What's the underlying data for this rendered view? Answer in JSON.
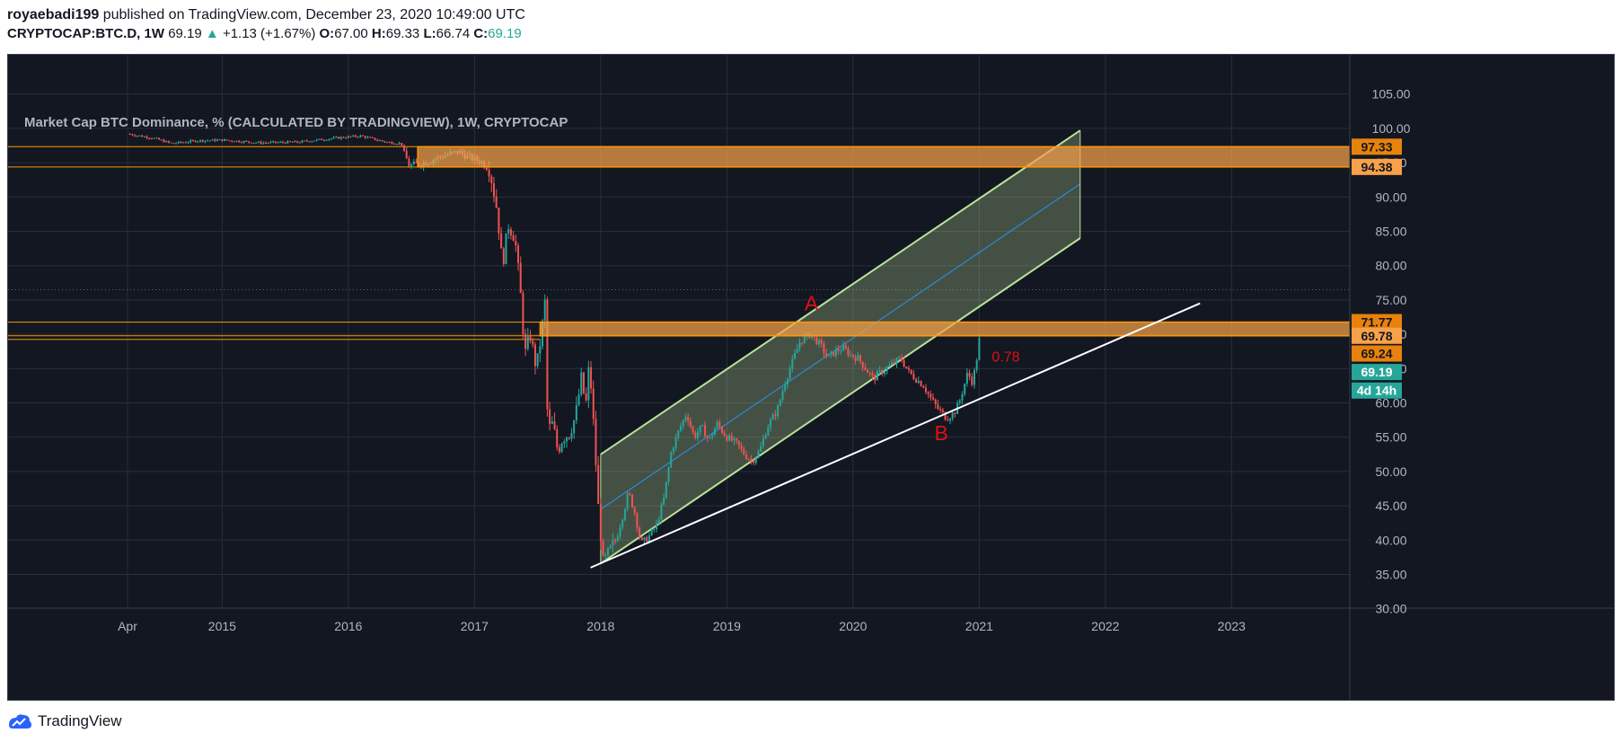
{
  "header": {
    "author": "royaebadi199",
    "published_text": " published on TradingView.com, December 23, 2020 10:49:00 UTC",
    "symbol": "CRYPTOCAP:BTC.D, 1W",
    "last": "69.19",
    "up_arrow": "▲",
    "change": "+1.13 (+1.67%)",
    "o_label": "O:",
    "o_value": "67.00",
    "h_label": "H:",
    "h_value": "69.33",
    "l_label": "L:",
    "l_value": "66.74",
    "c_label": "C:",
    "c_value": "69.19"
  },
  "footer": {
    "brand": "TradingView",
    "logo_icon": "tradingview-logo-icon"
  },
  "colors": {
    "background": "#131722",
    "grid": "#2a2e39",
    "up": "#26a69a",
    "down": "#ef5350",
    "zone_fill": "#f7a14a",
    "zone_border": "#ff9800",
    "channel_fill": "#c8e6a0",
    "channel_border": "#b9e39a",
    "midline": "#2196f3",
    "trendline": "#ffffff",
    "annotation": "#e01010",
    "axis_text": "#b2b5be"
  },
  "chart_data": {
    "type": "candlestick",
    "title": "Market Cap BTC Dominance, % (CALCULATED BY TRADINGVIEW), 1W, CRYPTOCAP",
    "ylim": [
      28,
      107.5
    ],
    "xlim": [
      2014.0,
      2024.1
    ],
    "y_ticks": [
      "30.00",
      "35.00",
      "40.00",
      "45.00",
      "50.00",
      "55.00",
      "60.00",
      "65.00",
      "70.00",
      "75.00",
      "80.00",
      "85.00",
      "90.00",
      "95.00",
      "100.00",
      "105.00"
    ],
    "x_ticks": [
      {
        "t": 2014.25,
        "label": "Apr"
      },
      {
        "t": 2015.0,
        "label": "2015"
      },
      {
        "t": 2016.0,
        "label": "2016"
      },
      {
        "t": 2017.0,
        "label": "2017"
      },
      {
        "t": 2018.0,
        "label": "2018"
      },
      {
        "t": 2019.0,
        "label": "2019"
      },
      {
        "t": 2020.0,
        "label": "2020"
      },
      {
        "t": 2021.0,
        "label": "2021"
      },
      {
        "t": 2022.0,
        "label": "2022"
      },
      {
        "t": 2023.0,
        "label": "2023"
      }
    ],
    "price_path": [
      [
        2014.25,
        99.2
      ],
      [
        2014.45,
        98.6
      ],
      [
        2014.6,
        97.8
      ],
      [
        2014.8,
        98.2
      ],
      [
        2015.0,
        98.3
      ],
      [
        2015.3,
        97.9
      ],
      [
        2015.6,
        98.0
      ],
      [
        2015.9,
        98.6
      ],
      [
        2016.1,
        98.9
      ],
      [
        2016.3,
        98.0
      ],
      [
        2016.42,
        97.8
      ],
      [
        2016.48,
        94.5
      ],
      [
        2016.6,
        95.0
      ],
      [
        2016.75,
        96.0
      ],
      [
        2016.88,
        96.6
      ],
      [
        2016.95,
        95.8
      ],
      [
        2017.05,
        95.2
      ],
      [
        2017.12,
        94.0
      ],
      [
        2017.18,
        88.0
      ],
      [
        2017.22,
        80.0
      ],
      [
        2017.27,
        86.0
      ],
      [
        2017.32,
        84.0
      ],
      [
        2017.36,
        77.0
      ],
      [
        2017.4,
        67.0
      ],
      [
        2017.44,
        70.0
      ],
      [
        2017.49,
        65.0
      ],
      [
        2017.53,
        70.0
      ],
      [
        2017.56,
        75.0
      ],
      [
        2017.58,
        56.0
      ],
      [
        2017.62,
        57.0
      ],
      [
        2017.66,
        53.0
      ],
      [
        2017.7,
        55.0
      ],
      [
        2017.75,
        55.5
      ],
      [
        2017.8,
        58.0
      ],
      [
        2017.85,
        64.0
      ],
      [
        2017.88,
        59.0
      ],
      [
        2017.91,
        66.0
      ],
      [
        2017.95,
        55.0
      ],
      [
        2017.98,
        45.0
      ],
      [
        2018.02,
        36.5
      ],
      [
        2018.06,
        38.0
      ],
      [
        2018.12,
        40.0
      ],
      [
        2018.18,
        44.0
      ],
      [
        2018.22,
        47.0
      ],
      [
        2018.27,
        44.0
      ],
      [
        2018.32,
        39.5
      ],
      [
        2018.38,
        40.5
      ],
      [
        2018.44,
        42.0
      ],
      [
        2018.5,
        46.0
      ],
      [
        2018.56,
        53.0
      ],
      [
        2018.62,
        56.0
      ],
      [
        2018.68,
        58.5
      ],
      [
        2018.74,
        55.0
      ],
      [
        2018.8,
        56.5
      ],
      [
        2018.86,
        54.5
      ],
      [
        2018.92,
        57.0
      ],
      [
        2019.0,
        55.0
      ],
      [
        2019.08,
        54.0
      ],
      [
        2019.14,
        52.5
      ],
      [
        2019.2,
        51.5
      ],
      [
        2019.26,
        53.0
      ],
      [
        2019.32,
        56.5
      ],
      [
        2019.4,
        59.0
      ],
      [
        2019.46,
        63.0
      ],
      [
        2019.52,
        66.0
      ],
      [
        2019.58,
        69.0
      ],
      [
        2019.66,
        70.0
      ],
      [
        2019.74,
        68.5
      ],
      [
        2019.8,
        66.5
      ],
      [
        2019.86,
        67.5
      ],
      [
        2019.92,
        68.0
      ],
      [
        2019.98,
        67.0
      ],
      [
        2020.04,
        66.5
      ],
      [
        2020.1,
        65.0
      ],
      [
        2020.16,
        63.5
      ],
      [
        2020.22,
        64.5
      ],
      [
        2020.3,
        65.5
      ],
      [
        2020.38,
        66.5
      ],
      [
        2020.44,
        64.5
      ],
      [
        2020.5,
        63.5
      ],
      [
        2020.56,
        62.5
      ],
      [
        2020.62,
        60.5
      ],
      [
        2020.68,
        59.0
      ],
      [
        2020.74,
        57.8
      ],
      [
        2020.8,
        58.5
      ],
      [
        2020.84,
        60.0
      ],
      [
        2020.88,
        62.5
      ],
      [
        2020.91,
        64.5
      ],
      [
        2020.94,
        63.0
      ],
      [
        2020.97,
        65.0
      ],
      [
        2021.0,
        69.19
      ]
    ],
    "zones": [
      {
        "name": "upper-zone",
        "y_top": 97.33,
        "y_bottom": 94.38,
        "t_start": 2016.55
      },
      {
        "name": "lower-zone",
        "y_top": 71.77,
        "y_bottom": 69.78,
        "t_start": 2017.52
      }
    ],
    "horizontal_lines": [
      {
        "y": 97.33,
        "t_end": 2016.55
      },
      {
        "y": 94.38,
        "t_end": 2016.55
      },
      {
        "y": 71.77,
        "t_end": 2017.52
      },
      {
        "y": 69.78,
        "t_end": 2017.52
      },
      {
        "y": 69.24,
        "t_end": 2017.52
      }
    ],
    "dotted_line_y": 76.5,
    "channel": {
      "t_start": 2018.0,
      "t_end": 2021.8,
      "upper": [
        52.5,
        99.7
      ],
      "mid": [
        44.5,
        91.9
      ],
      "lower": [
        36.6,
        84.0
      ]
    },
    "trendline": {
      "t0": 2017.92,
      "y0": 36.0,
      "t1": 2022.75,
      "y1": 74.5
    },
    "annotations": [
      {
        "text": "A",
        "t": 2019.67,
        "y": 73.5
      },
      {
        "text": "B",
        "t": 2020.7,
        "y": 54.6
      },
      {
        "text": "0.78",
        "t": 2021.1,
        "y": 66.0
      }
    ],
    "price_labels": [
      {
        "text": "97.33",
        "y": 97.33,
        "style": "zone"
      },
      {
        "text": "94.38",
        "y": 94.38,
        "style": "zone-light"
      },
      {
        "text": "71.77",
        "y": 71.77,
        "style": "zone"
      },
      {
        "text": "69.78",
        "y": 69.78,
        "style": "zone-light"
      },
      {
        "text": "69.24",
        "y": 67.2,
        "style": "zone"
      },
      {
        "text": "69.19",
        "y": 64.5,
        "style": "last"
      },
      {
        "text": "4d 14h",
        "y": 61.8,
        "style": "countdown"
      }
    ]
  }
}
